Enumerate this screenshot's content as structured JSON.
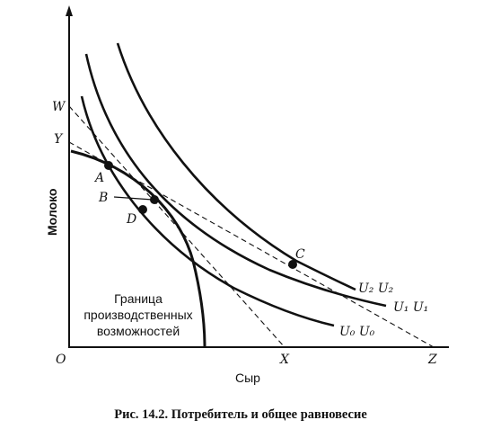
{
  "figure": {
    "caption": "Рис. 14.2. Потребитель и общее равновесие",
    "axes": {
      "y_label": "Молоко",
      "x_label": "Сыр",
      "origin": "O"
    },
    "axis_points": {
      "w": "W",
      "y": "Y",
      "x": "X",
      "z": "Z"
    },
    "points": {
      "a": "A",
      "b": "B",
      "c": "C",
      "d": "D"
    },
    "curves": {
      "u2": "U₂ U₂",
      "u1": "U₁ U₁",
      "u0": "U₀ U₀"
    },
    "frontier_label": [
      "Граница",
      "производственных",
      "возможностей"
    ]
  }
}
